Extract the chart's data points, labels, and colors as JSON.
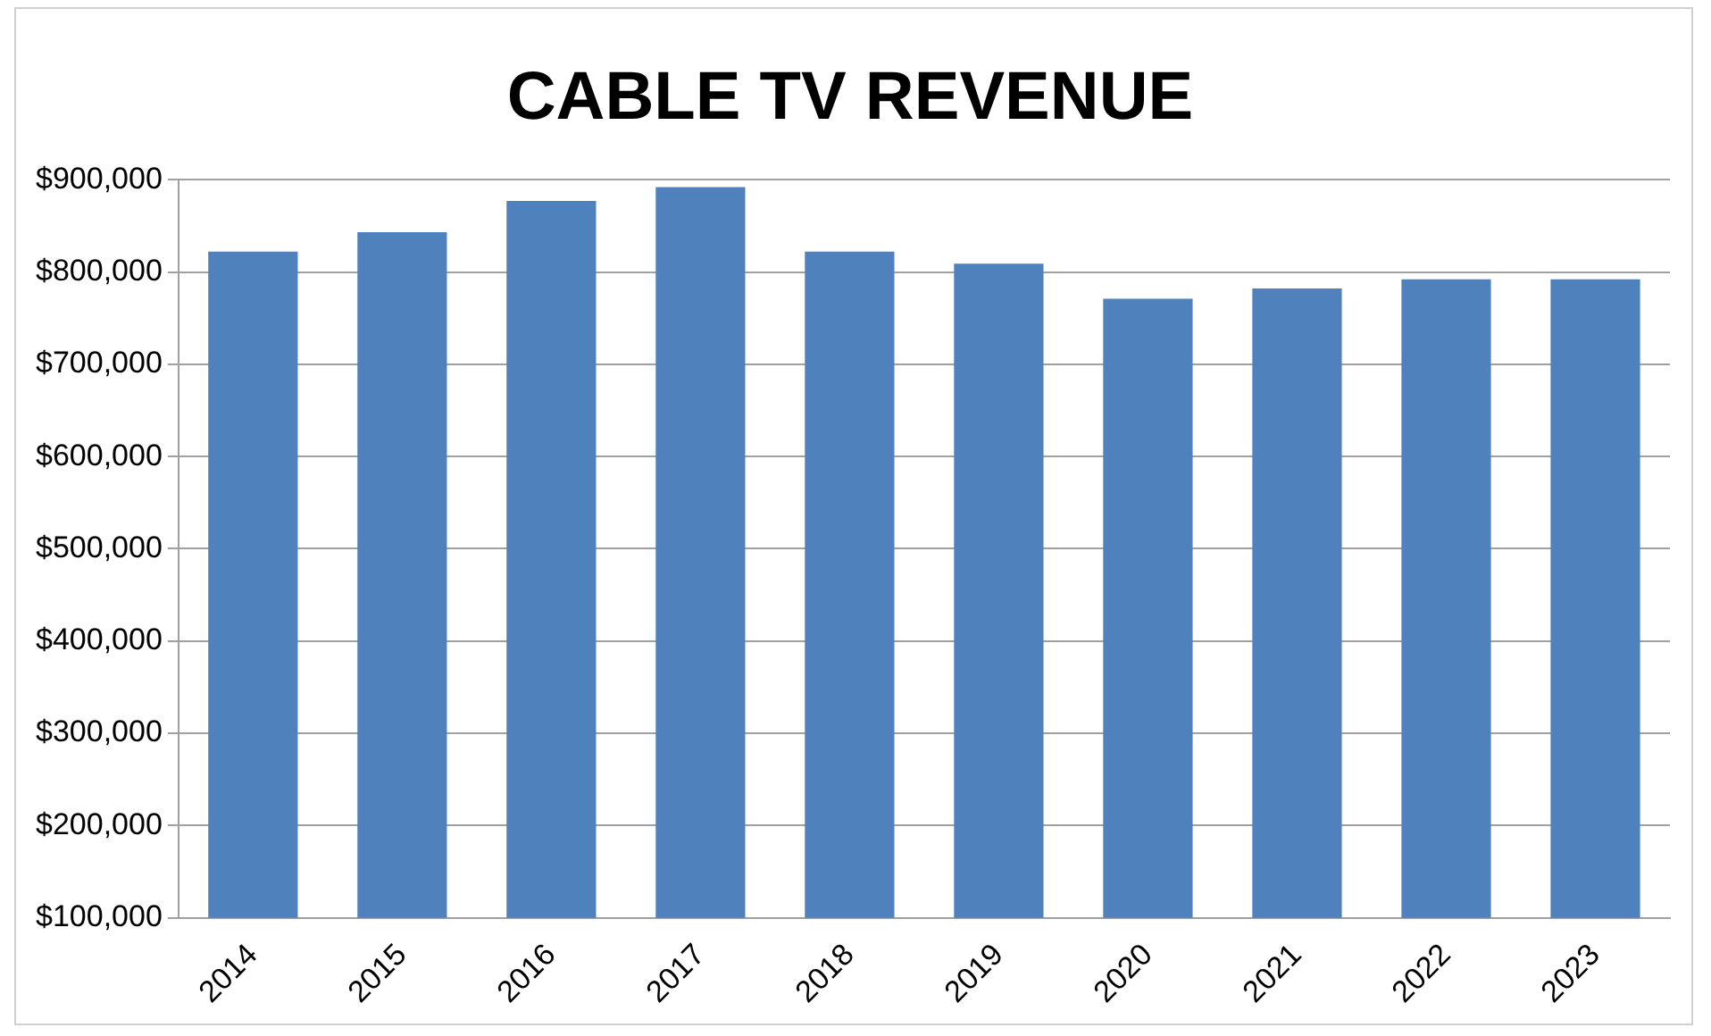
{
  "chart_data": {
    "type": "bar",
    "title": "CABLE TV REVENUE",
    "categories": [
      "2014",
      "2015",
      "2016",
      "2017",
      "2018",
      "2019",
      "2020",
      "2021",
      "2022",
      "2023"
    ],
    "values": [
      822000,
      843000,
      877000,
      892000,
      822000,
      809000,
      771000,
      782000,
      792000,
      792000
    ],
    "color": "#4f81bd",
    "ylim": [
      100000,
      900000
    ],
    "yticks": [
      {
        "value": 100000,
        "label": "$100,000"
      },
      {
        "value": 200000,
        "label": "$200,000"
      },
      {
        "value": 300000,
        "label": "$300,000"
      },
      {
        "value": 400000,
        "label": "$400,000"
      },
      {
        "value": 500000,
        "label": "$500,000"
      },
      {
        "value": 600000,
        "label": "$600,000"
      },
      {
        "value": 700000,
        "label": "$700,000"
      },
      {
        "value": 800000,
        "label": "$800,000"
      },
      {
        "value": 900000,
        "label": "$900,000"
      }
    ],
    "grid": "y",
    "legend": false
  }
}
